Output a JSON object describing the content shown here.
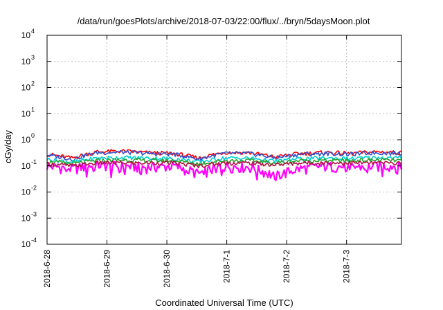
{
  "chart_data": {
    "type": "line",
    "title": "/data/run/goesPlots/archive/2018-07-03/22:00/flux/../bryn/5daysMoon.plot",
    "xlabel": "Coordinated Universal Time (UTC)",
    "ylabel": "cGy/day",
    "yscale": "log",
    "ylim": [
      0.0001,
      10000
    ],
    "y_ticks": [
      {
        "base": "10",
        "exp": "-4"
      },
      {
        "base": "10",
        "exp": "-3"
      },
      {
        "base": "10",
        "exp": "-2"
      },
      {
        "base": "10",
        "exp": "-1"
      },
      {
        "base": "10",
        "exp": "0"
      },
      {
        "base": "10",
        "exp": "1"
      },
      {
        "base": "10",
        "exp": "2"
      },
      {
        "base": "10",
        "exp": "3"
      },
      {
        "base": "10",
        "exp": "4"
      }
    ],
    "x_ticks": [
      "2018-6-28",
      "2018-6-29",
      "2018-6-30",
      "2018-7-1",
      "2018-7-2",
      "2018-7-3"
    ],
    "xlim": [
      "2018-6-28",
      "2018-7-3 22:00"
    ],
    "grid": true,
    "series": [
      {
        "color": "#ff00ff",
        "values": [
          0.1,
          0.08,
          0.11,
          0.1,
          0.09,
          0.1,
          0.05,
          0.1,
          0.09,
          0.04,
          0.08,
          0.1,
          0.09,
          0.1,
          0.1
        ]
      },
      {
        "color": "#ff0000",
        "values": [
          0.28,
          0.2,
          0.35,
          0.37,
          0.32,
          0.3,
          0.2,
          0.33,
          0.32,
          0.22,
          0.3,
          0.33,
          0.3,
          0.35,
          0.32
        ]
      },
      {
        "color": "#3050d0",
        "values": [
          0.26,
          0.18,
          0.32,
          0.34,
          0.3,
          0.28,
          0.18,
          0.3,
          0.3,
          0.2,
          0.28,
          0.3,
          0.28,
          0.32,
          0.3
        ]
      },
      {
        "color": "#00d0d0",
        "values": [
          0.18,
          0.14,
          0.2,
          0.21,
          0.2,
          0.19,
          0.14,
          0.2,
          0.2,
          0.15,
          0.19,
          0.2,
          0.19,
          0.21,
          0.2
        ]
      },
      {
        "color": "#2aa02a",
        "values": [
          0.15,
          0.12,
          0.16,
          0.17,
          0.16,
          0.16,
          0.12,
          0.16,
          0.16,
          0.13,
          0.16,
          0.16,
          0.16,
          0.17,
          0.16
        ]
      },
      {
        "color": "#b01040",
        "values": [
          0.12,
          0.1,
          0.13,
          0.13,
          0.13,
          0.13,
          0.1,
          0.13,
          0.13,
          0.11,
          0.13,
          0.13,
          0.13,
          0.13,
          0.13
        ]
      }
    ]
  }
}
